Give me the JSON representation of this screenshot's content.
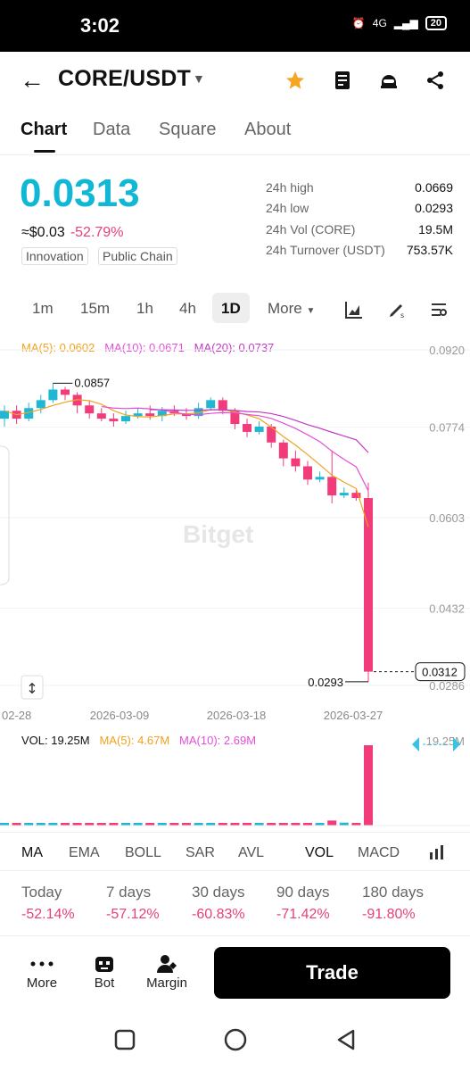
{
  "status": {
    "time": "3:02",
    "network": "4G",
    "battery": "20"
  },
  "header": {
    "pair": "CORE/USDT"
  },
  "tabs": [
    "Chart",
    "Data",
    "Square",
    "About"
  ],
  "ticker": {
    "price": "0.0313",
    "approx": "≈$0.03",
    "change": "-52.79%",
    "tags": [
      "Innovation",
      "Public Chain"
    ],
    "stats": [
      {
        "k": "24h high",
        "v": "0.0669"
      },
      {
        "k": "24h low",
        "v": "0.0293"
      },
      {
        "k": "24h Vol (CORE)",
        "v": "19.5M"
      },
      {
        "k": "24h Turnover (USDT)",
        "v": "753.57K"
      }
    ]
  },
  "timeframes": [
    "1m",
    "15m",
    "1h",
    "4h",
    "1D",
    "More"
  ],
  "ma": {
    "ma5": "MA(5): 0.0602",
    "ma10": "MA(10): 0.0671",
    "ma20": "MA(20): 0.0737"
  },
  "chart_labels": {
    "y_ticks": [
      "0.0920",
      "0.0774",
      "0.0603",
      "0.0432",
      "0.0286"
    ],
    "x_ticks": [
      "02-28",
      "2026-03-09",
      "2026-03-18",
      "2026-03-27"
    ],
    "high_marker": "0.0857",
    "low_marker": "0.0293",
    "last_price": "0.0312",
    "watermark": "Bitget"
  },
  "volume": {
    "vol": "VOL: 19.25M",
    "ma5": "MA(5): 4.67M",
    "ma10": "MA(10): 2.69M",
    "axis": "19.25M"
  },
  "indicators": [
    "MA",
    "EMA",
    "BOLL",
    "SAR",
    "AVL",
    "VOL",
    "MACD"
  ],
  "performance": [
    {
      "label": "Today",
      "value": "-52.14%"
    },
    {
      "label": "7 days",
      "value": "-57.12%"
    },
    {
      "label": "30 days",
      "value": "-60.83%"
    },
    {
      "label": "90 days",
      "value": "-71.42%"
    },
    {
      "label": "180 days",
      "value": "-91.80%"
    }
  ],
  "bottom_nav": {
    "more": "More",
    "bot": "Bot",
    "margin": "Margin",
    "trade": "Trade"
  },
  "chart_data": {
    "type": "candlestick",
    "y_axis_ticks": [
      0.092,
      0.0774,
      0.0603,
      0.0432,
      0.0286
    ],
    "x_ticks": [
      "02-28",
      "2026-03-09",
      "2026-03-18",
      "2026-03-27"
    ],
    "marked_high": 0.0857,
    "marked_low": 0.0293,
    "last_price": 0.0312,
    "candles": [
      {
        "o": 0.079,
        "c": 0.0805,
        "h": 0.0815,
        "l": 0.0775
      },
      {
        "o": 0.0805,
        "c": 0.079,
        "h": 0.0815,
        "l": 0.078
      },
      {
        "o": 0.079,
        "c": 0.081,
        "h": 0.082,
        "l": 0.0785
      },
      {
        "o": 0.081,
        "c": 0.0825,
        "h": 0.0835,
        "l": 0.08
      },
      {
        "o": 0.0825,
        "c": 0.0845,
        "h": 0.0857,
        "l": 0.082
      },
      {
        "o": 0.0845,
        "c": 0.0835,
        "h": 0.085,
        "l": 0.0825
      },
      {
        "o": 0.0835,
        "c": 0.0815,
        "h": 0.084,
        "l": 0.08
      },
      {
        "o": 0.0815,
        "c": 0.08,
        "h": 0.0825,
        "l": 0.079
      },
      {
        "o": 0.08,
        "c": 0.079,
        "h": 0.081,
        "l": 0.0785
      },
      {
        "o": 0.079,
        "c": 0.0785,
        "h": 0.08,
        "l": 0.0775
      },
      {
        "o": 0.0785,
        "c": 0.0795,
        "h": 0.0805,
        "l": 0.078
      },
      {
        "o": 0.0795,
        "c": 0.08,
        "h": 0.081,
        "l": 0.079
      },
      {
        "o": 0.08,
        "c": 0.0795,
        "h": 0.0815,
        "l": 0.0788
      },
      {
        "o": 0.0795,
        "c": 0.0805,
        "h": 0.0812,
        "l": 0.0785
      },
      {
        "o": 0.0805,
        "c": 0.08,
        "h": 0.0815,
        "l": 0.0795
      },
      {
        "o": 0.08,
        "c": 0.0795,
        "h": 0.081,
        "l": 0.0788
      },
      {
        "o": 0.0795,
        "c": 0.081,
        "h": 0.082,
        "l": 0.079
      },
      {
        "o": 0.081,
        "c": 0.0825,
        "h": 0.083,
        "l": 0.0805
      },
      {
        "o": 0.0825,
        "c": 0.0805,
        "h": 0.083,
        "l": 0.0798
      },
      {
        "o": 0.0805,
        "c": 0.078,
        "h": 0.081,
        "l": 0.077
      },
      {
        "o": 0.078,
        "c": 0.0765,
        "h": 0.079,
        "l": 0.0755
      },
      {
        "o": 0.0765,
        "c": 0.0775,
        "h": 0.0785,
        "l": 0.076
      },
      {
        "o": 0.0775,
        "c": 0.0745,
        "h": 0.078,
        "l": 0.0735
      },
      {
        "o": 0.0745,
        "c": 0.0715,
        "h": 0.075,
        "l": 0.07
      },
      {
        "o": 0.0715,
        "c": 0.07,
        "h": 0.073,
        "l": 0.069
      },
      {
        "o": 0.07,
        "c": 0.0675,
        "h": 0.071,
        "l": 0.0665
      },
      {
        "o": 0.0675,
        "c": 0.068,
        "h": 0.069,
        "l": 0.067
      },
      {
        "o": 0.068,
        "c": 0.0645,
        "h": 0.073,
        "l": 0.063
      },
      {
        "o": 0.0645,
        "c": 0.065,
        "h": 0.066,
        "l": 0.064
      },
      {
        "o": 0.065,
        "c": 0.064,
        "h": 0.0655,
        "l": 0.0635
      },
      {
        "o": 0.064,
        "c": 0.0312,
        "h": 0.0669,
        "l": 0.0293
      }
    ],
    "volumes": [
      0.25,
      0.2,
      0.2,
      0.25,
      0.3,
      0.25,
      0.2,
      0.2,
      0.2,
      0.2,
      0.2,
      0.2,
      0.2,
      0.2,
      0.2,
      0.2,
      0.25,
      0.3,
      0.3,
      0.35,
      0.4,
      0.35,
      0.4,
      0.5,
      0.6,
      0.6,
      0.5,
      1.2,
      0.7,
      0.5,
      19.25
    ],
    "volume_unit": "M"
  }
}
